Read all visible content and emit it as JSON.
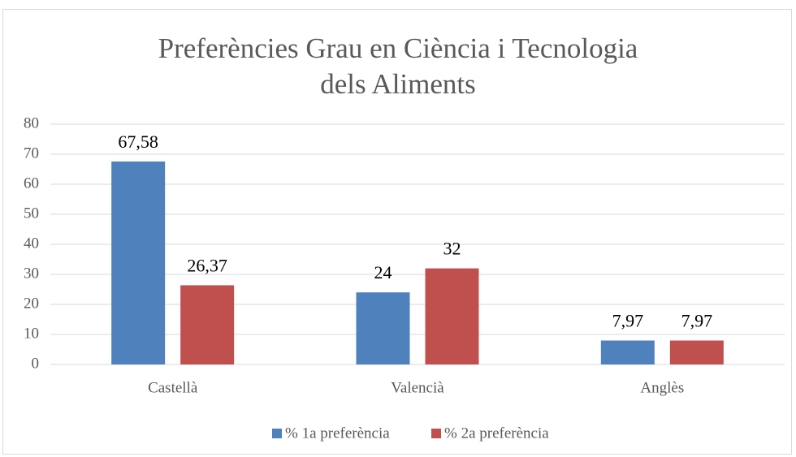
{
  "chart_data": {
    "type": "bar",
    "title": "Preferències Grau en Ciència i Tecnologia dels Aliments",
    "categories": [
      "Castellà",
      "Valencià",
      "Anglès"
    ],
    "series": [
      {
        "name": "% 1a preferència",
        "color": "#4f81bd",
        "values": [
          67.58,
          24,
          7.97
        ],
        "value_labels": [
          "67,58",
          "24",
          "7,97"
        ]
      },
      {
        "name": "% 2a preferència",
        "color": "#c0504d",
        "values": [
          26.37,
          32,
          7.97
        ],
        "value_labels": [
          "26,37",
          "32",
          "7,97"
        ]
      }
    ],
    "ylim": [
      0,
      80
    ],
    "yticks": [
      0,
      10,
      20,
      30,
      40,
      50,
      60,
      70,
      80
    ],
    "grid": true,
    "legend": "bottom"
  }
}
